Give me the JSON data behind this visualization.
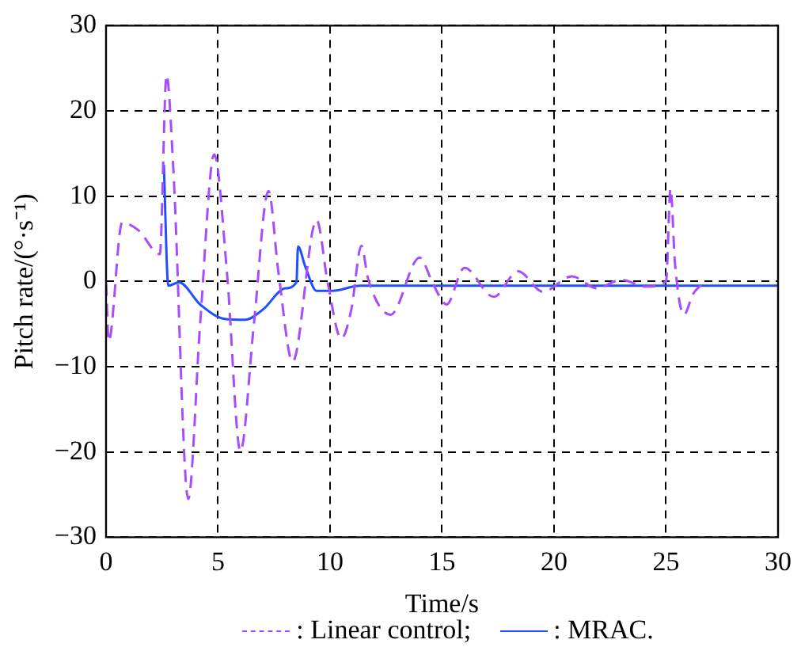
{
  "chart_data": {
    "type": "line",
    "xlabel": "Time/s",
    "ylabel": "Pitch rate/(°·s⁻¹)",
    "xlim": [
      0,
      30
    ],
    "ylim": [
      -30,
      30
    ],
    "xticks": [
      0,
      5,
      10,
      15,
      20,
      25,
      30
    ],
    "yticks": [
      -30,
      -20,
      -10,
      0,
      10,
      20,
      30
    ],
    "grid": true,
    "legend": "bottom",
    "marker": "none",
    "series": [
      {
        "name": ": Linear control;",
        "color": "#a64dff",
        "line_style": "dashed",
        "x": [
          0,
          0.12,
          0.72,
          1.45,
          2.4,
          2.7,
          3.0,
          3.67,
          4.2,
          4.83,
          5.4,
          6.0,
          6.6,
          7.25,
          7.7,
          8.33,
          9.4,
          9.9,
          10.5,
          10.95,
          11.4,
          11.7,
          12.7,
          14.0,
          14.6,
          15.2,
          16.0,
          17.3,
          18.4,
          19.5,
          20.8,
          21.9,
          23.0,
          24.1,
          25.0,
          25.2,
          25.4,
          25.8,
          26.2,
          26.6
        ],
        "values": [
          -0.2,
          -7,
          6.9,
          6,
          3.2,
          24.2,
          13.4,
          -25.5,
          -5,
          14.9,
          1,
          -19.9,
          -5,
          10.6,
          1,
          -9.4,
          7.2,
          -0.2,
          -6.7,
          -3.3,
          4.2,
          0.3,
          -3.9,
          2.8,
          -0.3,
          -2.7,
          1.6,
          -1.8,
          1.2,
          -1.2,
          0.6,
          -0.8,
          0.2,
          -0.6,
          0,
          10.9,
          2.1,
          -3.9,
          -1.5,
          -0.3
        ]
      },
      {
        "name": ": MRAC.",
        "color": "#1f4fff",
        "line_style": "solid",
        "x": [
          2.58,
          2.78,
          3.26,
          4.2,
          5.3,
          6.2,
          7.0,
          8.0,
          8.5,
          8.57,
          8.9,
          9.4,
          10.1,
          11.35,
          12.8,
          30
        ],
        "values": [
          13.7,
          -0.5,
          -0.1,
          -2.7,
          -4.4,
          -4.5,
          -3.3,
          -0.8,
          -0.1,
          4.1,
          1.7,
          -1.1,
          -1.1,
          -0.5,
          -0.5,
          -0.5
        ]
      }
    ]
  }
}
